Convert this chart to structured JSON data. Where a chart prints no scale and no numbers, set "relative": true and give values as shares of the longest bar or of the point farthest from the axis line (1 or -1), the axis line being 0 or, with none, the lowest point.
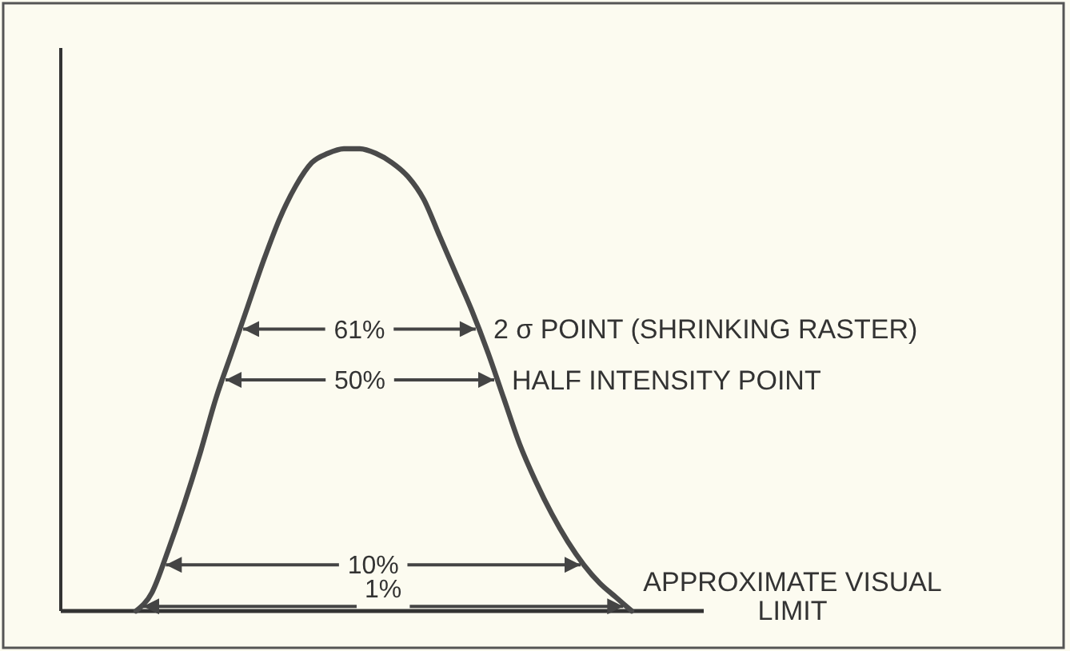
{
  "chart_data": {
    "type": "line",
    "relative": true,
    "categories": [
      null,
      null,
      null,
      null,
      null,
      null,
      null,
      null,
      null,
      null,
      null,
      null,
      null,
      null,
      null,
      null,
      null,
      null,
      null,
      null,
      null,
      null,
      null,
      null,
      null,
      null,
      null,
      null,
      null,
      null,
      null,
      null
    ],
    "series": [
      {
        "color": "#4a4a4a",
        "values": [
          0,
          0.04,
          0.13,
          0.23,
          0.34,
          0.46,
          0.56,
          0.66,
          0.76,
          0.85,
          0.92,
          0.97,
          0.99,
          1,
          1,
          0.99,
          0.97,
          0.94,
          0.89,
          0.81,
          0.73,
          0.65,
          0.56,
          0.46,
          0.36,
          0.28,
          0.21,
          0.15,
          0.1,
          0.06,
          0.03,
          0
        ]
      }
    ],
    "ref_lines": [
      {
        "axis": "y",
        "value": 0.61,
        "label": "61%"
      },
      {
        "axis": "y",
        "value": 0.5,
        "label": "50%"
      },
      {
        "axis": "y",
        "value": 0.1,
        "label": "10%"
      },
      {
        "axis": "y",
        "value": 0.01,
        "label": "1%"
      }
    ],
    "annotations": [
      "2 σ POINT (SHRINKING RASTER)",
      "HALF INTENSITY POINT",
      "APPROXIMATE VISUAL LIMIT"
    ],
    "marker": "none",
    "line_style": "solid"
  }
}
